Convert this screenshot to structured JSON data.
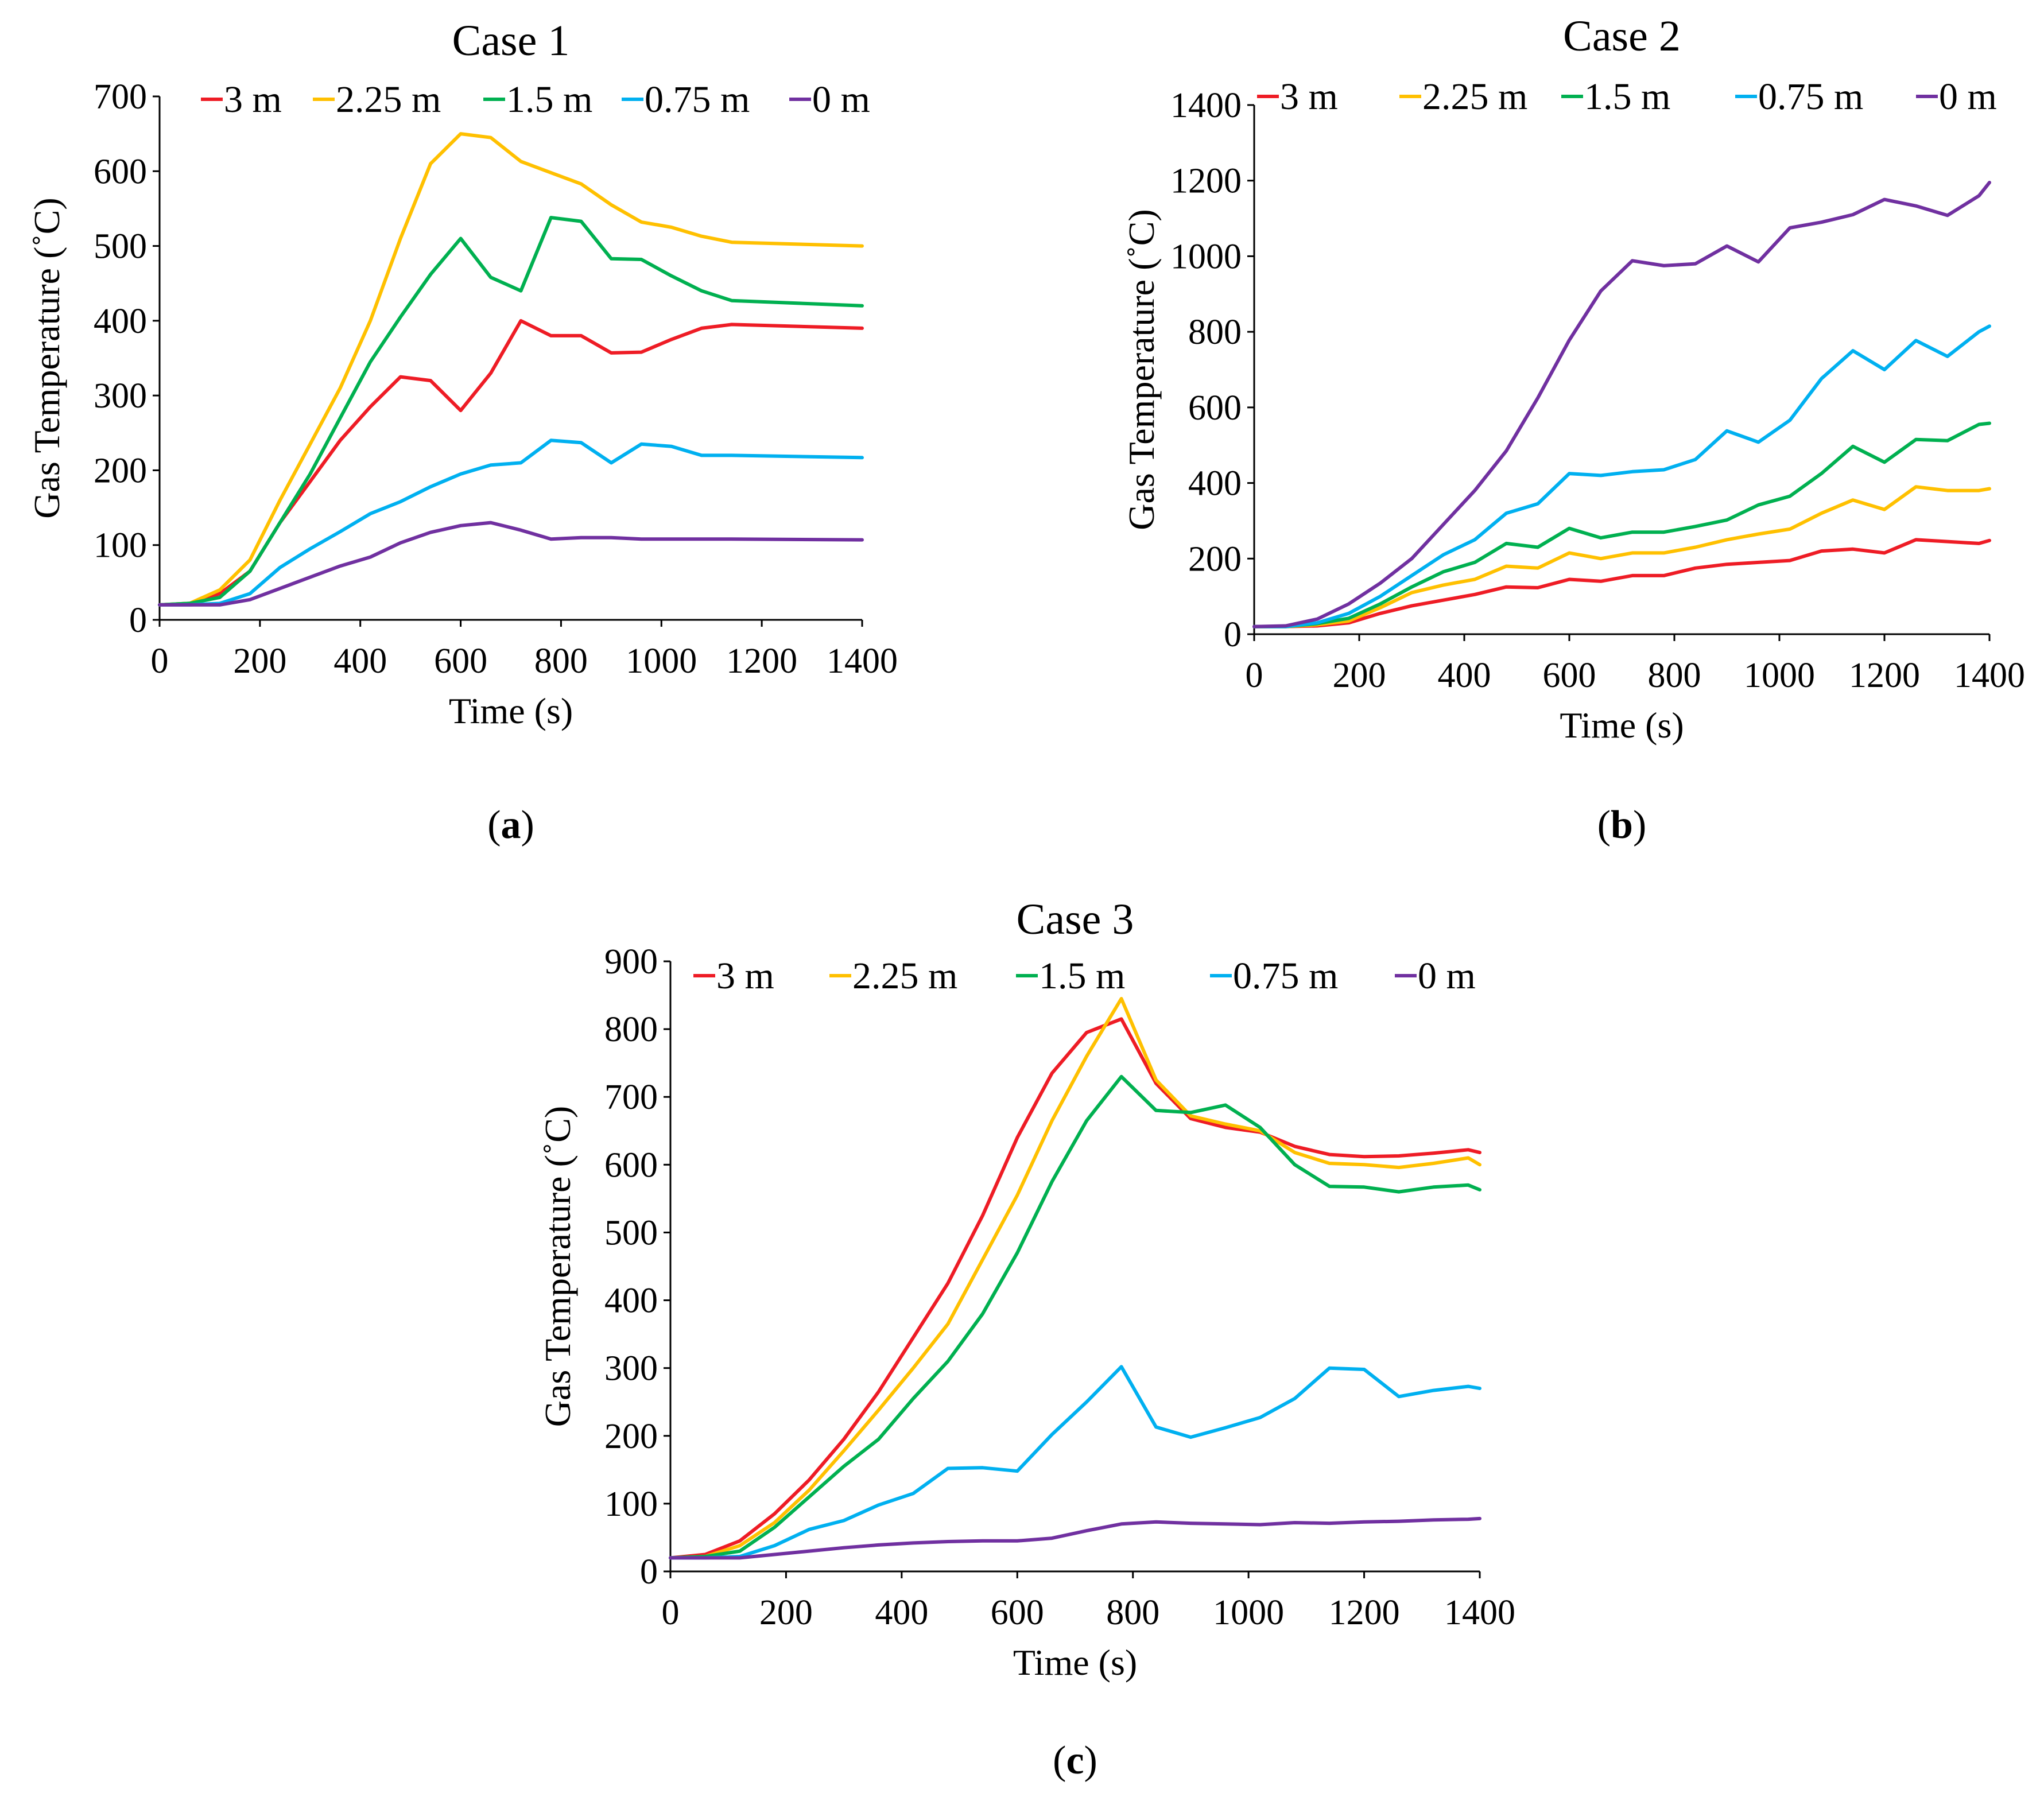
{
  "chart_data": [
    {
      "type": "line",
      "title": "Case 1",
      "caption_letter": "a",
      "xlabel": "Time (s)",
      "ylabel": "Gas Temperature (˚C)",
      "xlim": [
        0,
        1400
      ],
      "ylim": [
        0,
        700
      ],
      "xticks": [
        0,
        200,
        400,
        600,
        800,
        1000,
        1200,
        1400
      ],
      "yticks": [
        0,
        100,
        200,
        300,
        400,
        500,
        600,
        700
      ],
      "x": [
        0,
        60,
        120,
        180,
        240,
        300,
        360,
        420,
        480,
        540,
        600,
        660,
        720,
        780,
        840,
        900,
        960,
        1020,
        1080,
        1140,
        1400
      ],
      "series": [
        {
          "name": "3 m",
          "color": "#ee1c25",
          "values": [
            20,
            22,
            35,
            65,
            130,
            185,
            240,
            285,
            325,
            320,
            280,
            330,
            400,
            380,
            380,
            357,
            358,
            375,
            390,
            395,
            390
          ]
        },
        {
          "name": "2.25 m",
          "color": "#ffc000",
          "values": [
            20,
            22,
            40,
            80,
            160,
            235,
            310,
            400,
            510,
            610,
            650,
            645,
            613,
            598,
            583,
            555,
            532,
            525,
            513,
            505,
            500
          ]
        },
        {
          "name": "1.5 m",
          "color": "#00b050",
          "values": [
            20,
            22,
            30,
            65,
            130,
            195,
            270,
            345,
            405,
            462,
            510,
            458,
            440,
            538,
            533,
            483,
            482,
            460,
            440,
            427,
            420
          ]
        },
        {
          "name": "0.75 m",
          "color": "#00b0f0",
          "values": [
            20,
            20,
            22,
            35,
            70,
            95,
            118,
            142,
            158,
            178,
            195,
            207,
            210,
            240,
            237,
            210,
            235,
            232,
            220,
            220,
            217
          ]
        },
        {
          "name": "0 m",
          "color": "#7030a0",
          "values": [
            20,
            20,
            20,
            27,
            42,
            57,
            72,
            84,
            103,
            117,
            126,
            130,
            120,
            108,
            110,
            110,
            108,
            108,
            108,
            108,
            107
          ]
        }
      ]
    },
    {
      "type": "line",
      "title": "Case 2",
      "caption_letter": "b",
      "xlabel": "Time (s)",
      "ylabel": "Gas Temperature (˚C)",
      "xlim": [
        0,
        1400
      ],
      "ylim": [
        0,
        1400
      ],
      "xticks": [
        0,
        200,
        400,
        600,
        800,
        1000,
        1200,
        1400
      ],
      "yticks": [
        0,
        200,
        400,
        600,
        800,
        1000,
        1200,
        1400
      ],
      "x": [
        0,
        60,
        120,
        180,
        240,
        300,
        360,
        420,
        480,
        540,
        600,
        660,
        720,
        780,
        840,
        900,
        960,
        1020,
        1080,
        1140,
        1200,
        1260,
        1320,
        1380,
        1400
      ],
      "series": [
        {
          "name": "3 m",
          "color": "#ee1c25",
          "values": [
            20,
            20,
            22,
            30,
            55,
            75,
            90,
            105,
            125,
            123,
            145,
            140,
            155,
            155,
            175,
            185,
            190,
            195,
            220,
            225,
            215,
            250,
            245,
            240,
            248
          ]
        },
        {
          "name": "2.25 m",
          "color": "#ffc000",
          "values": [
            20,
            20,
            25,
            35,
            70,
            110,
            130,
            145,
            180,
            175,
            215,
            200,
            215,
            215,
            230,
            250,
            265,
            278,
            320,
            355,
            330,
            390,
            380,
            380,
            385
          ]
        },
        {
          "name": "1.5 m",
          "color": "#00b050",
          "values": [
            20,
            20,
            28,
            42,
            80,
            125,
            165,
            190,
            240,
            230,
            280,
            255,
            270,
            270,
            285,
            302,
            342,
            365,
            425,
            497,
            455,
            515,
            512,
            555,
            558
          ]
        },
        {
          "name": "0.75 m",
          "color": "#00b0f0",
          "values": [
            20,
            20,
            30,
            55,
            100,
            155,
            210,
            250,
            320,
            345,
            425,
            420,
            430,
            435,
            462,
            538,
            508,
            566,
            676,
            750,
            700,
            777,
            735,
            800,
            815
          ]
        },
        {
          "name": "0 m",
          "color": "#7030a0",
          "values": [
            20,
            22,
            40,
            80,
            135,
            200,
            290,
            380,
            485,
            625,
            778,
            908,
            988,
            975,
            980,
            1027,
            985,
            1075,
            1090,
            1110,
            1150,
            1133,
            1108,
            1160,
            1195
          ]
        }
      ]
    },
    {
      "type": "line",
      "title": "Case 3",
      "caption_letter": "c",
      "xlabel": "Time (s)",
      "ylabel": "Gas Temperature (˚C)",
      "xlim": [
        0,
        1400
      ],
      "ylim": [
        0,
        900
      ],
      "xticks": [
        0,
        200,
        400,
        600,
        800,
        1000,
        1200,
        1400
      ],
      "yticks": [
        0,
        100,
        200,
        300,
        400,
        500,
        600,
        700,
        800,
        900
      ],
      "x": [
        0,
        60,
        120,
        180,
        240,
        300,
        360,
        420,
        480,
        540,
        600,
        660,
        720,
        780,
        840,
        900,
        960,
        1020,
        1080,
        1140,
        1200,
        1260,
        1320,
        1380,
        1400
      ],
      "series": [
        {
          "name": "3 m",
          "color": "#ee1c25",
          "values": [
            20,
            25,
            45,
            85,
            135,
            195,
            265,
            345,
            425,
            525,
            640,
            735,
            795,
            815,
            720,
            668,
            655,
            648,
            627,
            615,
            612,
            613,
            617,
            622,
            618
          ]
        },
        {
          "name": "2.25 m",
          "color": "#ffc000",
          "values": [
            20,
            22,
            38,
            72,
            120,
            178,
            238,
            300,
            365,
            460,
            555,
            665,
            760,
            845,
            725,
            672,
            660,
            650,
            618,
            602,
            600,
            596,
            602,
            610,
            600
          ]
        },
        {
          "name": "1.5 m",
          "color": "#00b050",
          "values": [
            20,
            22,
            30,
            65,
            110,
            155,
            195,
            255,
            310,
            380,
            470,
            575,
            665,
            730,
            680,
            677,
            688,
            655,
            600,
            568,
            567,
            560,
            567,
            570,
            563
          ]
        },
        {
          "name": "0.75 m",
          "color": "#00b0f0",
          "values": [
            20,
            20,
            22,
            38,
            62,
            75,
            98,
            115,
            152,
            153,
            148,
            202,
            250,
            302,
            213,
            198,
            212,
            227,
            255,
            300,
            298,
            258,
            267,
            273,
            270
          ]
        },
        {
          "name": "0 m",
          "color": "#7030a0",
          "values": [
            20,
            20,
            20,
            25,
            30,
            35,
            39,
            42,
            44,
            45,
            45,
            49,
            60,
            70,
            73,
            71,
            70,
            69,
            72,
            71,
            73,
            74,
            76,
            77,
            78
          ]
        }
      ]
    }
  ]
}
